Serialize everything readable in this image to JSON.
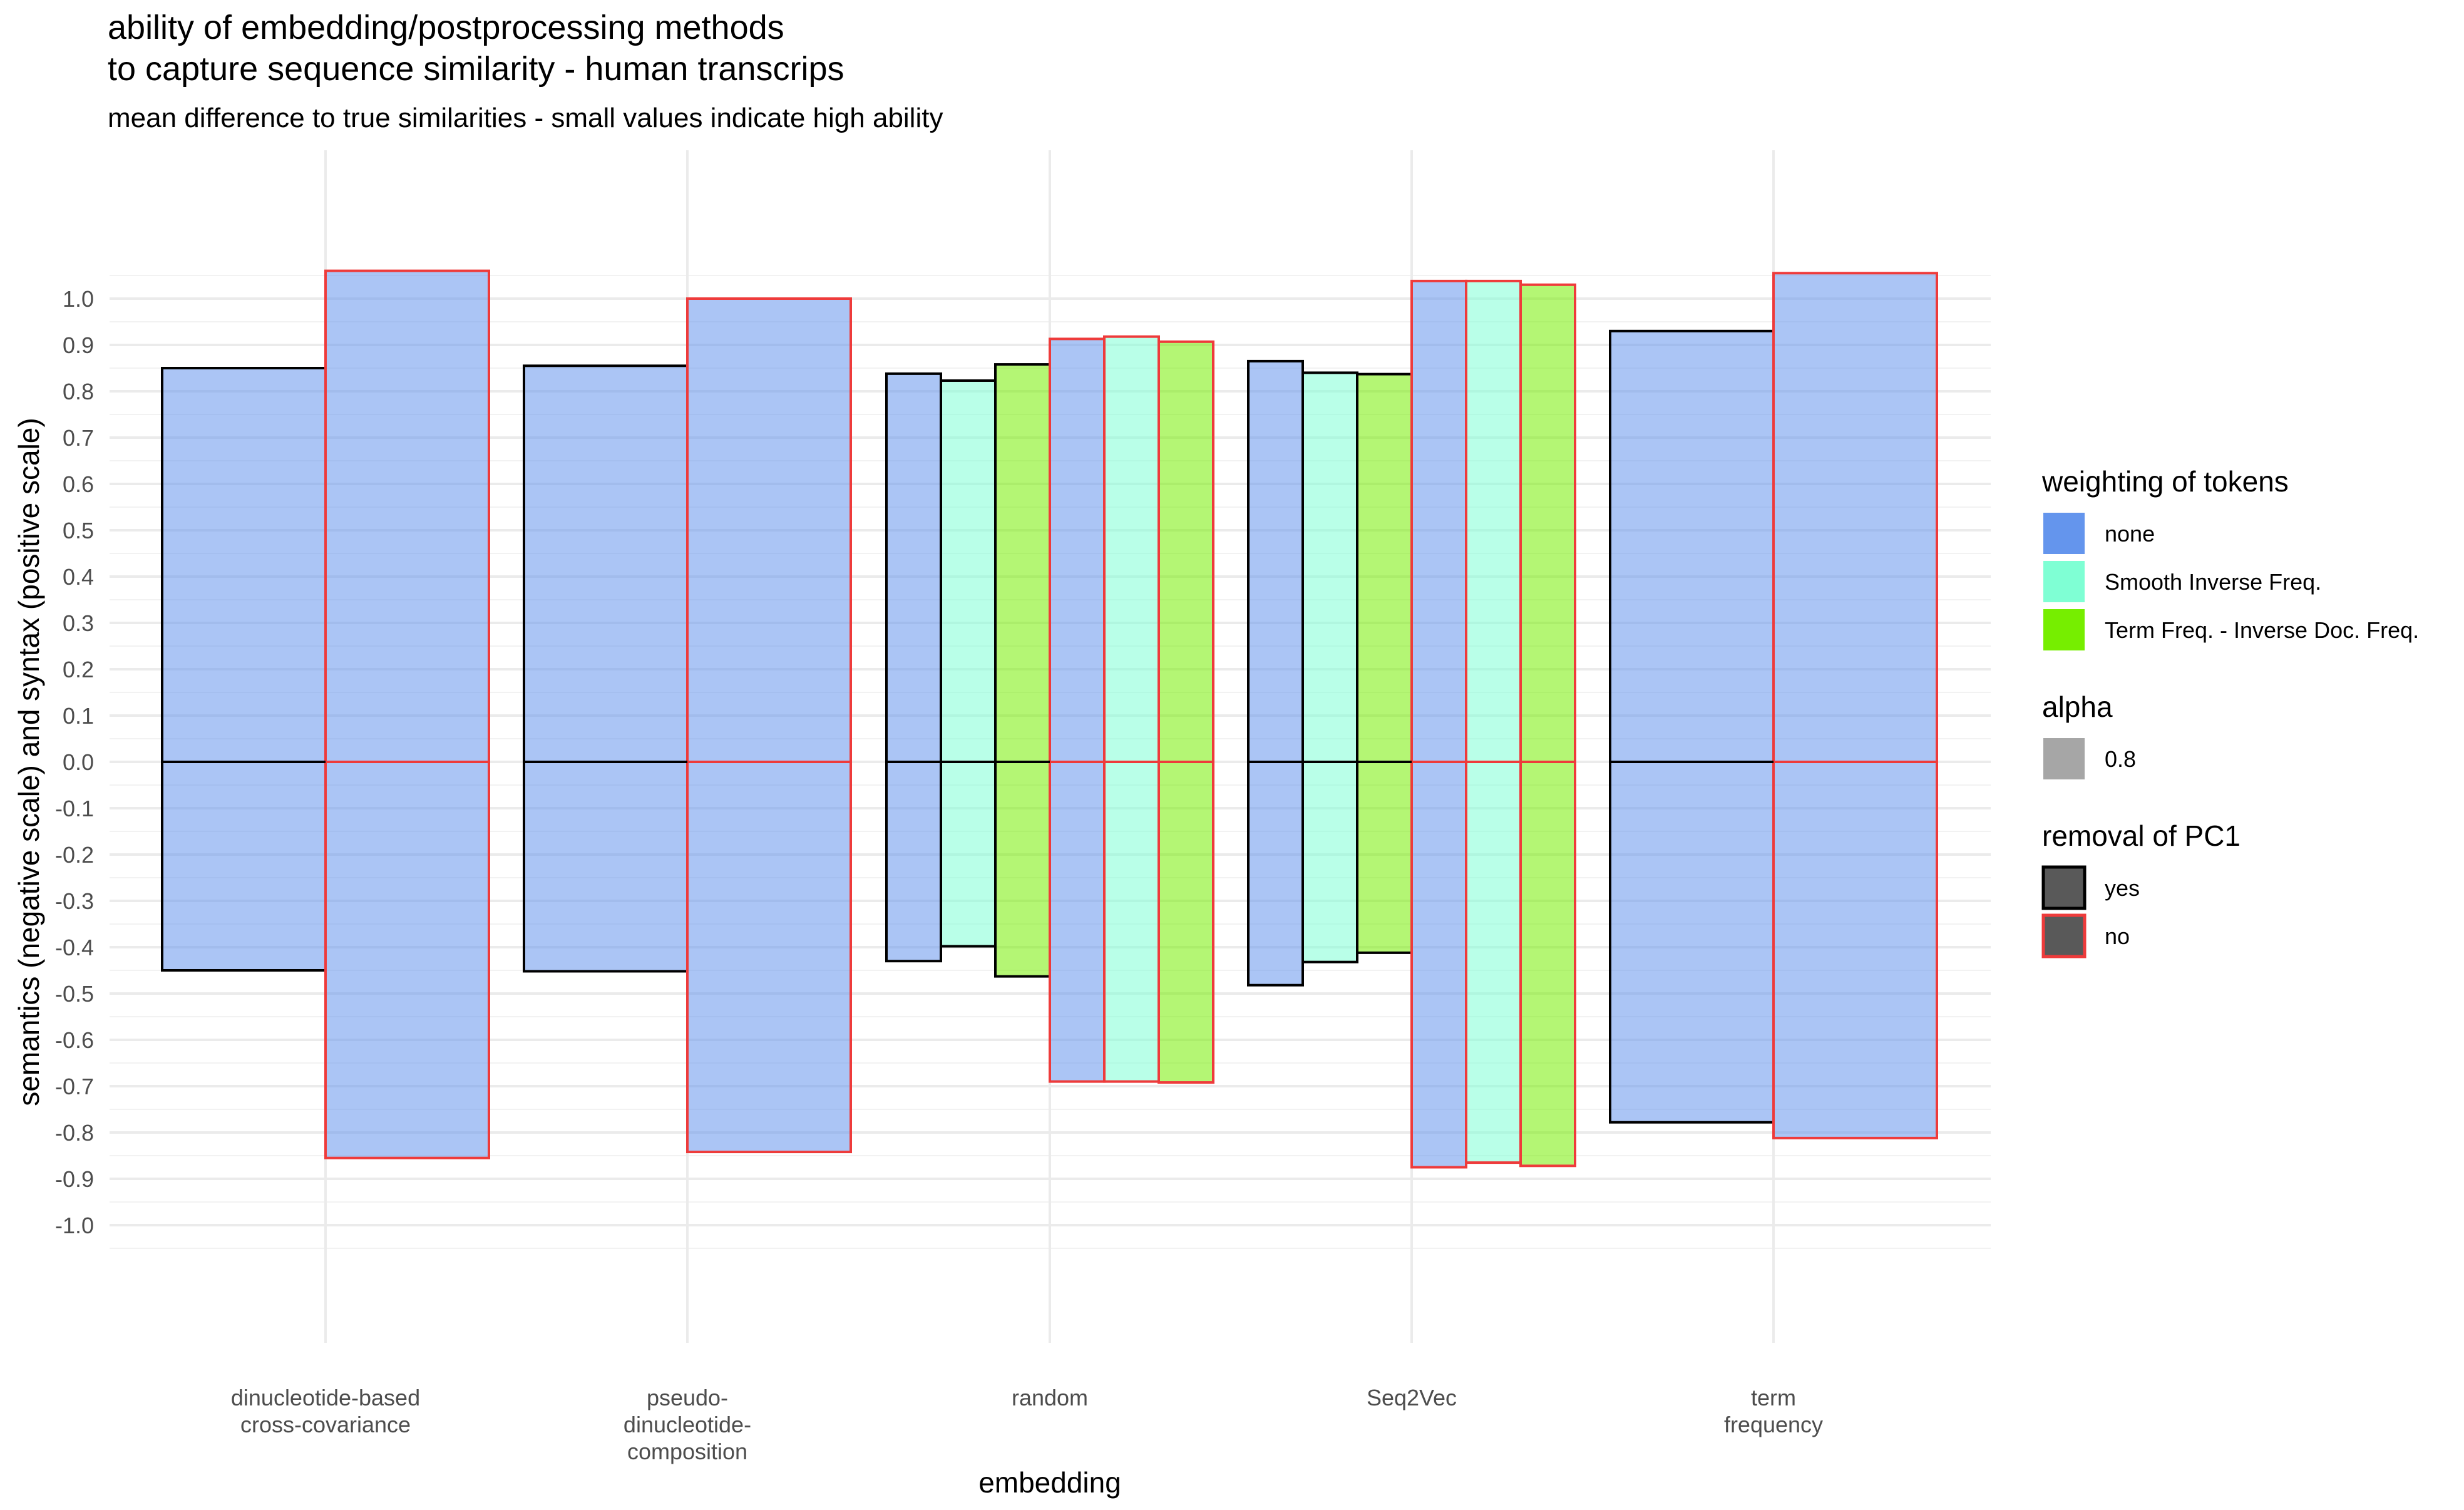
{
  "chart_data": {
    "type": "bar",
    "title": [
      "ability of embedding/postprocessing methods",
      "to capture sequence similarity - human transcrips"
    ],
    "subtitle": "mean difference to true similarities - small values indicate high ability",
    "xlabel": "embedding",
    "ylabel": "semantics (negative scale) and syntax (positive scale)",
    "ylim": [
      -1.1,
      1.1
    ],
    "yticks": [
      1.0,
      0.9,
      0.8,
      0.7,
      0.6,
      0.5,
      0.4,
      0.3,
      0.2,
      0.1,
      0.0,
      -0.1,
      -0.2,
      -0.3,
      -0.4,
      -0.5,
      -0.6,
      -0.7,
      -0.8,
      -0.9,
      -1.0
    ],
    "ytick_labels": [
      "1.0",
      "0.9",
      "0.8",
      "0.7",
      "0.6",
      "0.5",
      "0.4",
      "0.3",
      "0.2",
      "0.1",
      "0.0",
      "-0.1",
      "-0.2",
      "-0.3",
      "-0.4",
      "-0.5",
      "-0.6",
      "-0.7",
      "-0.8",
      "-0.9",
      "-1.0"
    ],
    "grid": true,
    "alpha": 0.8,
    "categories": [
      {
        "name": "dinucleotide-based cross-covariance",
        "label_lines": [
          "dinucleotide-based",
          "cross-covariance"
        ]
      },
      {
        "name": "pseudo-dinucleotide-composition",
        "label_lines": [
          "pseudo-",
          "dinucleotide-",
          "composition"
        ]
      },
      {
        "name": "random",
        "label_lines": [
          "random"
        ]
      },
      {
        "name": "Seq2Vec",
        "label_lines": [
          "Seq2Vec"
        ]
      },
      {
        "name": "term frequency",
        "label_lines": [
          "term",
          "frequency"
        ]
      }
    ],
    "colors": {
      "none": "#6495ED",
      "Smooth Inverse Freq.": "#7FFFD4",
      "Term Freq. - Inverse Doc. Freq.": "#76EE00",
      "yes": "#000000",
      "no": "#EE3B3B"
    },
    "bars": [
      {
        "category": "dinucleotide-based cross-covariance",
        "weighting": "none",
        "pc1_removed": "yes",
        "syntax": 0.85,
        "semantics": -0.45
      },
      {
        "category": "dinucleotide-based cross-covariance",
        "weighting": "none",
        "pc1_removed": "no",
        "syntax": 1.06,
        "semantics": -0.855
      },
      {
        "category": "pseudo-dinucleotide-composition",
        "weighting": "none",
        "pc1_removed": "yes",
        "syntax": 0.855,
        "semantics": -0.452
      },
      {
        "category": "pseudo-dinucleotide-composition",
        "weighting": "none",
        "pc1_removed": "no",
        "syntax": 1.0,
        "semantics": -0.842
      },
      {
        "category": "random",
        "weighting": "none",
        "pc1_removed": "yes",
        "syntax": 0.838,
        "semantics": -0.43
      },
      {
        "category": "random",
        "weighting": "Smooth Inverse Freq.",
        "pc1_removed": "yes",
        "syntax": 0.823,
        "semantics": -0.398
      },
      {
        "category": "random",
        "weighting": "Term Freq. - Inverse Doc. Freq.",
        "pc1_removed": "yes",
        "syntax": 0.858,
        "semantics": -0.463
      },
      {
        "category": "random",
        "weighting": "none",
        "pc1_removed": "no",
        "syntax": 0.913,
        "semantics": -0.69
      },
      {
        "category": "random",
        "weighting": "Smooth Inverse Freq.",
        "pc1_removed": "no",
        "syntax": 0.918,
        "semantics": -0.69
      },
      {
        "category": "random",
        "weighting": "Term Freq. - Inverse Doc. Freq.",
        "pc1_removed": "no",
        "syntax": 0.907,
        "semantics": -0.692
      },
      {
        "category": "Seq2Vec",
        "weighting": "none",
        "pc1_removed": "yes",
        "syntax": 0.865,
        "semantics": -0.482
      },
      {
        "category": "Seq2Vec",
        "weighting": "Smooth Inverse Freq.",
        "pc1_removed": "yes",
        "syntax": 0.84,
        "semantics": -0.432
      },
      {
        "category": "Seq2Vec",
        "weighting": "Term Freq. - Inverse Doc. Freq.",
        "pc1_removed": "yes",
        "syntax": 0.837,
        "semantics": -0.412
      },
      {
        "category": "Seq2Vec",
        "weighting": "none",
        "pc1_removed": "no",
        "syntax": 1.038,
        "semantics": -0.875
      },
      {
        "category": "Seq2Vec",
        "weighting": "Smooth Inverse Freq.",
        "pc1_removed": "no",
        "syntax": 1.038,
        "semantics": -0.865
      },
      {
        "category": "Seq2Vec",
        "weighting": "Term Freq. - Inverse Doc. Freq.",
        "pc1_removed": "no",
        "syntax": 1.03,
        "semantics": -0.872
      },
      {
        "category": "term frequency",
        "weighting": "none",
        "pc1_removed": "yes",
        "syntax": 0.93,
        "semantics": -0.778
      },
      {
        "category": "term frequency",
        "weighting": "none",
        "pc1_removed": "no",
        "syntax": 1.055,
        "semantics": -0.812
      }
    ],
    "legend": {
      "position": "right",
      "groups": [
        {
          "title": "weighting of tokens",
          "kind": "fill",
          "entries": [
            {
              "label": "none",
              "color": "#6495ED"
            },
            {
              "label": "Smooth Inverse Freq.",
              "color": "#7FFFD4"
            },
            {
              "label": "Term Freq. - Inverse Doc. Freq.",
              "color": "#76EE00"
            }
          ]
        },
        {
          "title": "alpha",
          "kind": "alpha",
          "entries": [
            {
              "label": "0.8",
              "color": "#a6a6a6"
            }
          ]
        },
        {
          "title": "removal of PC1",
          "kind": "outline",
          "entries": [
            {
              "label": "yes",
              "color": "#000000"
            },
            {
              "label": "no",
              "color": "#EE3B3B"
            }
          ]
        }
      ]
    }
  }
}
